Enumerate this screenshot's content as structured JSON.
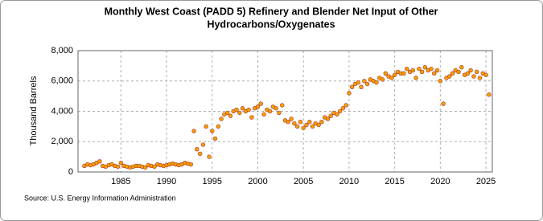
{
  "chart_data": {
    "type": "scatter",
    "title": [
      "Monthly West Coast (PADD 5) Refinery and Blender Net Input of Other",
      "Hydrocarbons/Oxygenates"
    ],
    "y_label": "Thousand Barrels",
    "source": "Source: U.S. Energy Information Administration",
    "xlim": [
      1980.3,
      2025.7
    ],
    "xticks": [
      1985,
      1990,
      1995,
      2000,
      2005,
      2010,
      2015,
      2020,
      2025
    ],
    "ylim": [
      0,
      8000
    ],
    "yticks": [
      0,
      {
        "value": 2000,
        "label": "2,000"
      },
      {
        "value": 4000,
        "label": "4,000"
      },
      {
        "value": 6000,
        "label": "6,000"
      },
      {
        "value": 8000,
        "label": "8,000"
      }
    ],
    "grid": true,
    "series": [
      {
        "color": "#f5a000",
        "x": [
          1981,
          1981.33,
          1981.67,
          1982,
          1982.33,
          1982.67,
          1983,
          1983.33,
          1983.67,
          1984,
          1984.33,
          1984.67,
          1985,
          1985.33,
          1985.67,
          1986,
          1986.33,
          1986.67,
          1987,
          1987.33,
          1987.67,
          1988,
          1988.33,
          1988.67,
          1989,
          1989.33,
          1989.67,
          1990,
          1990.33,
          1990.67,
          1991,
          1991.33,
          1991.67,
          1992,
          1992.33,
          1992.67,
          1993,
          1993.33,
          1993.67,
          1994,
          1994.33,
          1994.67,
          1995,
          1995.33,
          1995.67,
          1996,
          1996.33,
          1996.67,
          1997,
          1997.33,
          1997.67,
          1998,
          1998.33,
          1998.67,
          1999,
          1999.33,
          1999.67,
          2000,
          2000.33,
          2000.67,
          2001,
          2001.33,
          2001.67,
          2002,
          2002.33,
          2002.67,
          2003,
          2003.33,
          2003.67,
          2004,
          2004.33,
          2004.67,
          2005,
          2005.33,
          2005.67,
          2006,
          2006.33,
          2006.67,
          2007,
          2007.33,
          2007.67,
          2008,
          2008.33,
          2008.67,
          2009,
          2009.33,
          2009.67,
          2010,
          2010.33,
          2010.67,
          2011,
          2011.33,
          2011.67,
          2012,
          2012.33,
          2012.67,
          2013,
          2013.33,
          2013.67,
          2014,
          2014.33,
          2014.67,
          2015,
          2015.33,
          2015.67,
          2016,
          2016.33,
          2016.67,
          2017,
          2017.33,
          2017.67,
          2018,
          2018.33,
          2018.67,
          2019,
          2019.33,
          2019.67,
          2020,
          2020.33,
          2020.67,
          2021,
          2021.33,
          2021.67,
          2022,
          2022.33,
          2022.67,
          2023,
          2023.33,
          2023.67,
          2024,
          2024.33,
          2024.67,
          2025,
          2025.33
        ],
        "values": [
          400,
          500,
          450,
          500,
          600,
          700,
          400,
          350,
          450,
          500,
          400,
          350,
          600,
          400,
          350,
          300,
          350,
          400,
          400,
          350,
          300,
          450,
          400,
          350,
          500,
          450,
          400,
          450,
          500,
          550,
          500,
          450,
          500,
          600,
          550,
          500,
          2700,
          1500,
          1200,
          1800,
          3000,
          1000,
          2700,
          2200,
          3000,
          3500,
          3800,
          3900,
          3700,
          4000,
          4100,
          3900,
          4200,
          4000,
          4100,
          3600,
          4200,
          4300,
          4500,
          3800,
          4100,
          4000,
          4300,
          4200,
          3900,
          4400,
          3400,
          3300,
          3500,
          3200,
          3000,
          3300,
          2900,
          3100,
          3300,
          3000,
          3200,
          3100,
          3300,
          3600,
          3500,
          3700,
          3900,
          3800,
          4000,
          4200,
          4400,
          5200,
          5600,
          5800,
          5900,
          5600,
          6000,
          5800,
          6100,
          6000,
          5900,
          6200,
          6100,
          6500,
          6300,
          6200,
          6400,
          6600,
          6500,
          6500,
          6800,
          6600,
          6700,
          6200,
          6800,
          6600,
          6900,
          6700,
          6800,
          6500,
          6700,
          6000,
          4500,
          6200,
          6300,
          6500,
          6700,
          6600,
          6900,
          6400,
          6500,
          6700,
          6300,
          6600,
          6200,
          6500,
          6400,
          5100
        ]
      }
    ]
  }
}
